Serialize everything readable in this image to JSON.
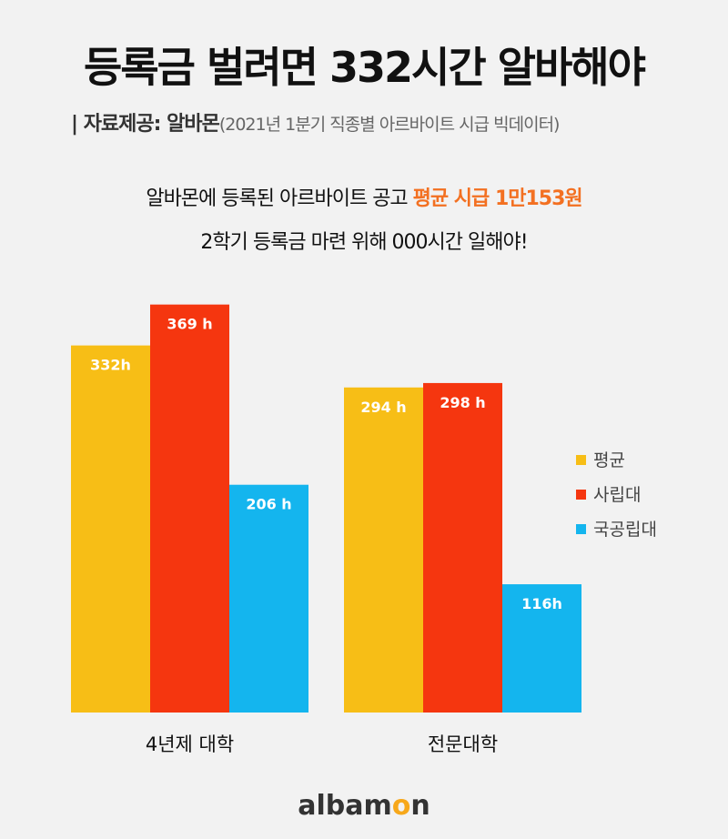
{
  "title": "등록금 벌려면 332시간 알바해야",
  "source": {
    "prefix": "| 자료제공: 알바몬",
    "detail": "(2021년 1분기 직종별 아르바이트 시급 빅데이터)"
  },
  "subtitle": {
    "line1_plain": "알바몬에 등록된 아르바이트 공고 ",
    "line1_highlight": "평균 시급 1만153원",
    "line2": "2학기 등록금 마련 위해 000시간 일해야!"
  },
  "logo": {
    "text_a": "albam",
    "text_o": "o",
    "text_b": "n"
  },
  "chart_data": {
    "type": "bar",
    "categories": [
      "4년제 대학",
      "전문대학"
    ],
    "series": [
      {
        "name": "평균",
        "color": "#F7BE16",
        "values": [
          332,
          294
        ],
        "labels": [
          "332h",
          "294 h"
        ]
      },
      {
        "name": "사립대",
        "color": "#F5360F",
        "values": [
          369,
          298
        ],
        "labels": [
          "369 h",
          "298 h"
        ]
      },
      {
        "name": "국공립대",
        "color": "#14B5EE",
        "values": [
          206,
          116
        ],
        "labels": [
          "206 h",
          "116h"
        ]
      }
    ],
    "legend": "right",
    "grid": false
  }
}
